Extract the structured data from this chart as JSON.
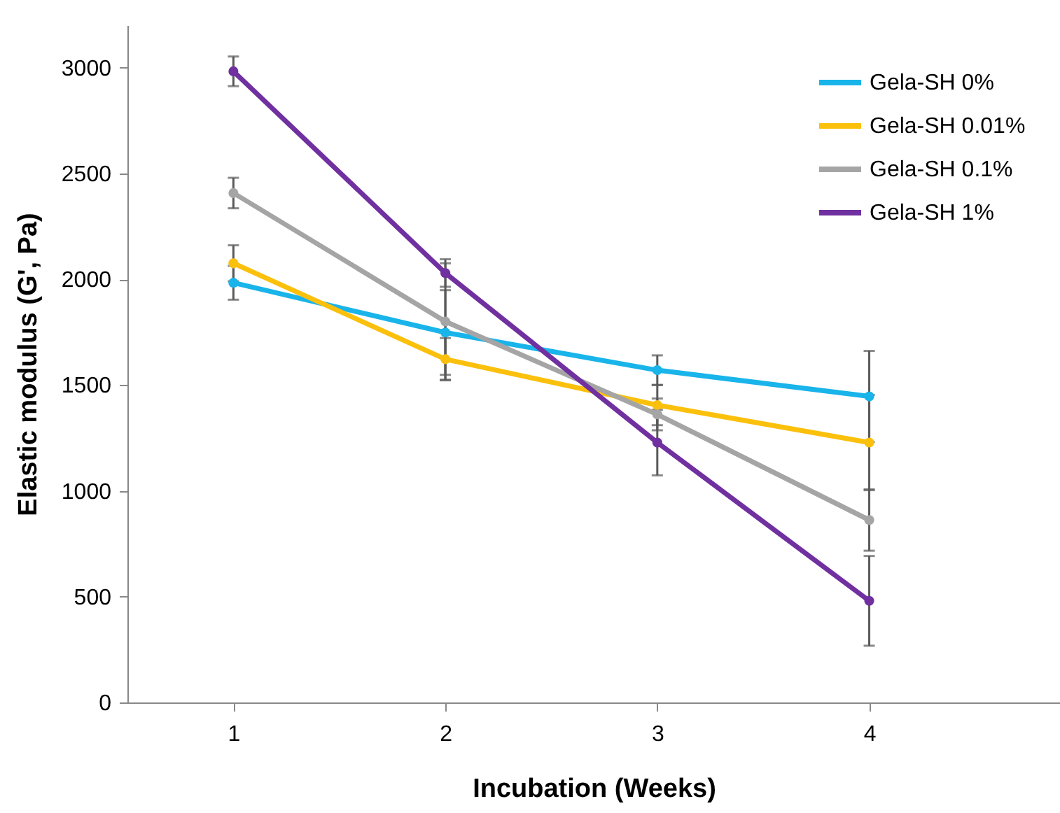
{
  "chart_data": {
    "type": "line",
    "xlabel": "Incubation (Weeks)",
    "ylabel": "Elastic modulus (G', Pa)",
    "x": [
      1,
      2,
      3,
      4
    ],
    "series": [
      {
        "name": "Gela-SH 0%",
        "color": "#19b4ea",
        "values": [
          1983,
          1748,
          1570,
          1446
        ],
        "errors": [
          80,
          200,
          70,
          215
        ]
      },
      {
        "name": "Gela-SH 0.01%",
        "color": "#fbc00c",
        "values": [
          2075,
          1622,
          1405,
          1228
        ],
        "errors": [
          85,
          100,
          95,
          225
        ]
      },
      {
        "name": "Gela-SH 0.1%",
        "color": "#a5a5a5",
        "values": [
          2407,
          1800,
          1361,
          862
        ],
        "errors": [
          72,
          275,
          75,
          145
        ]
      },
      {
        "name": "Gela-SH 1%",
        "color": "#7030a0",
        "values": [
          2982,
          2029,
          1228,
          480
        ],
        "errors": [
          70,
          65,
          155,
          212
        ]
      }
    ],
    "xlim": [
      0.5,
      4.9
    ],
    "xticks": [
      1,
      2,
      3,
      4
    ],
    "ylim": [
      0,
      3200
    ],
    "yticks": [
      0,
      500,
      1000,
      1500,
      2000,
      2500,
      3000
    ],
    "legend": "top right",
    "marker": "circle",
    "grid": false
  }
}
